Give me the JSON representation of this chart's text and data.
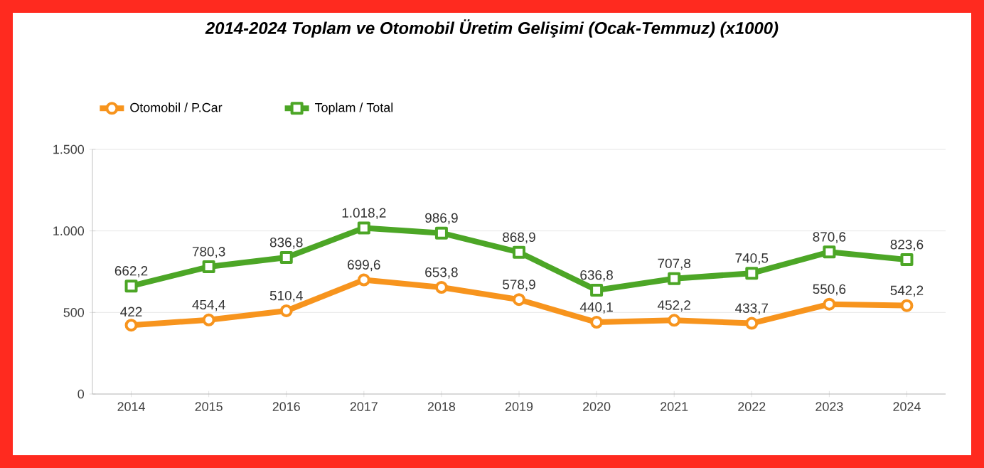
{
  "chart_data": {
    "type": "line",
    "title": "2014-2024 Toplam ve Otomobil Üretim Gelişimi (Ocak-Temmuz) (x1000)",
    "categories": [
      "2014",
      "2015",
      "2016",
      "2017",
      "2018",
      "2019",
      "2020",
      "2021",
      "2022",
      "2023",
      "2024"
    ],
    "series": [
      {
        "name": "Otomobil / P.Car",
        "color": "#f7941d",
        "marker": "circle",
        "values": [
          422,
          454.4,
          510.4,
          699.6,
          653.8,
          578.9,
          440.1,
          452.2,
          433.7,
          550.6,
          542.2
        ],
        "value_labels": [
          "422",
          "454,4",
          "510,4",
          "699,6",
          "653,8",
          "578,9",
          "440,1",
          "452,2",
          "433,7",
          "550,6",
          "542,2"
        ]
      },
      {
        "name": "Toplam / Total",
        "color": "#4ca626",
        "marker": "square",
        "values": [
          662.2,
          780.3,
          836.8,
          1018.2,
          986.9,
          868.9,
          636.8,
          707.8,
          740.5,
          870.6,
          823.6
        ],
        "value_labels": [
          "662,2",
          "780,3",
          "836,8",
          "1.018,2",
          "986,9",
          "868,9",
          "636,8",
          "707,8",
          "740,5",
          "870,6",
          "823,6"
        ]
      }
    ],
    "ylim": [
      0,
      1500
    ],
    "yticks": [
      0,
      500,
      {
        "value": 1000,
        "label": "1.000"
      },
      {
        "value": 1500,
        "label": "1.500"
      }
    ],
    "grid": "y",
    "legend": "top left",
    "line_style": "solid"
  }
}
